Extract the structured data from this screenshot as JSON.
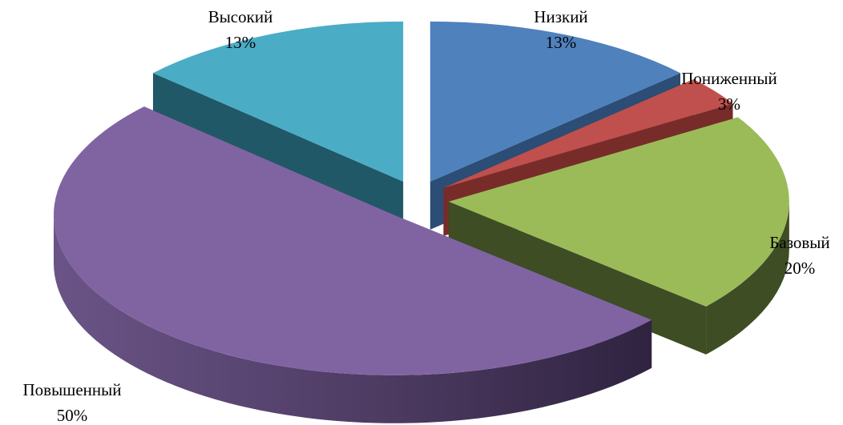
{
  "chart_data": {
    "type": "pie",
    "title": "",
    "style": "3d-exploded",
    "categories": [
      "Низкий",
      "Пониженный",
      "Базовый",
      "Повышенный",
      "Высокий"
    ],
    "values": [
      13,
      3,
      20,
      50,
      13
    ],
    "value_labels": [
      "13%",
      "3%",
      "20%",
      "50%",
      "13%"
    ],
    "colors": [
      "#4f81bd",
      "#c0504d",
      "#9bbb59",
      "#8064a2",
      "#4bacc6"
    ],
    "side_colors": [
      "#2c4d75",
      "#772c2a",
      "#3e4d24",
      "#4d3b62",
      "#205867"
    ],
    "legend": "none"
  }
}
